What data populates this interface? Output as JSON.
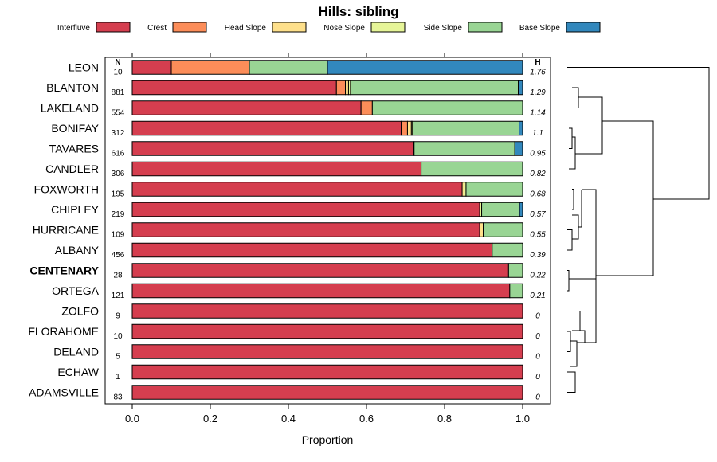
{
  "chart_data": {
    "type": "bar",
    "orientation": "horizontal",
    "stacked": true,
    "title": "Hills: sibling",
    "xlabel": "Proportion",
    "xlim": [
      0,
      1
    ],
    "xticks": [
      "0.0",
      "0.2",
      "0.4",
      "0.6",
      "0.8",
      "1.0"
    ],
    "n_header": "N",
    "h_header": "H",
    "legend_position": "top",
    "categories": [
      "LEON",
      "BLANTON",
      "LAKELAND",
      "BONIFAY",
      "TAVARES",
      "CANDLER",
      "FOXWORTH",
      "CHIPLEY",
      "HURRICANE",
      "ALBANY",
      "CENTENARY",
      "ORTEGA",
      "ZOLFO",
      "FLORAHOME",
      "DELAND",
      "ECHAW",
      "ADAMSVILLE"
    ],
    "highlight": "CENTENARY",
    "n": [
      "10",
      "881",
      "554",
      "312",
      "616",
      "306",
      "195",
      "219",
      "109",
      "456",
      "28",
      "121",
      "9",
      "10",
      "5",
      "1",
      "83"
    ],
    "h": [
      "1.76",
      "1.29",
      "1.14",
      "1.1",
      "0.95",
      "0.82",
      "0.68",
      "0.57",
      "0.55",
      "0.39",
      "0.22",
      "0.21",
      "0",
      "0",
      "0",
      "0",
      "0"
    ],
    "series": [
      {
        "name": "Interfluve",
        "color": "#d53e4f",
        "values": [
          0.1,
          0.523,
          0.586,
          0.689,
          0.72,
          0.74,
          0.845,
          0.89,
          0.89,
          0.922,
          0.964,
          0.967,
          1,
          1,
          1,
          1,
          1
        ]
      },
      {
        "name": "Crest",
        "color": "#fc8d59",
        "values": [
          0.2,
          0.023,
          0.029,
          0.016,
          0.0,
          0.0,
          0.0,
          0.0,
          0.0,
          0.0,
          0.0,
          0.0,
          0,
          0,
          0,
          0,
          0
        ]
      },
      {
        "name": "Head Slope",
        "color": "#fee08b",
        "values": [
          0.0,
          0.008,
          0.0,
          0.01,
          0.002,
          0.0,
          0.005,
          0.0,
          0.009,
          0.0,
          0.0,
          0.0,
          0,
          0,
          0,
          0,
          0
        ]
      },
      {
        "name": "Nose Slope",
        "color": "#e6f598",
        "values": [
          0.0,
          0.005,
          0.0,
          0.003,
          0.0,
          0.0,
          0.005,
          0.005,
          0.0,
          0.0,
          0.0,
          0.0,
          0,
          0,
          0,
          0,
          0
        ]
      },
      {
        "name": "Side Slope",
        "color": "#99d594",
        "values": [
          0.2,
          0.43,
          0.385,
          0.273,
          0.258,
          0.26,
          0.145,
          0.097,
          0.101,
          0.078,
          0.036,
          0.033,
          0,
          0,
          0,
          0,
          0
        ]
      },
      {
        "name": "Base Slope",
        "color": "#3288bd",
        "values": [
          0.5,
          0.011,
          0.0,
          0.009,
          0.02,
          0.0,
          0.0,
          0.008,
          0.0,
          0.0,
          0.0,
          0.0,
          0,
          0,
          0,
          0,
          0
        ]
      }
    ],
    "dendrogram_leaf_order": [
      "LEON",
      "BLANTON",
      "LAKELAND",
      "BONIFAY",
      "TAVARES",
      "CANDLER",
      "FOXWORTH",
      "CHIPLEY",
      "HURRICANE",
      "ALBANY",
      "CENTENARY",
      "ORTEGA",
      "ZOLFO",
      "FLORAHOME",
      "DELAND",
      "ECHAW",
      "ADAMSVILLE"
    ]
  }
}
